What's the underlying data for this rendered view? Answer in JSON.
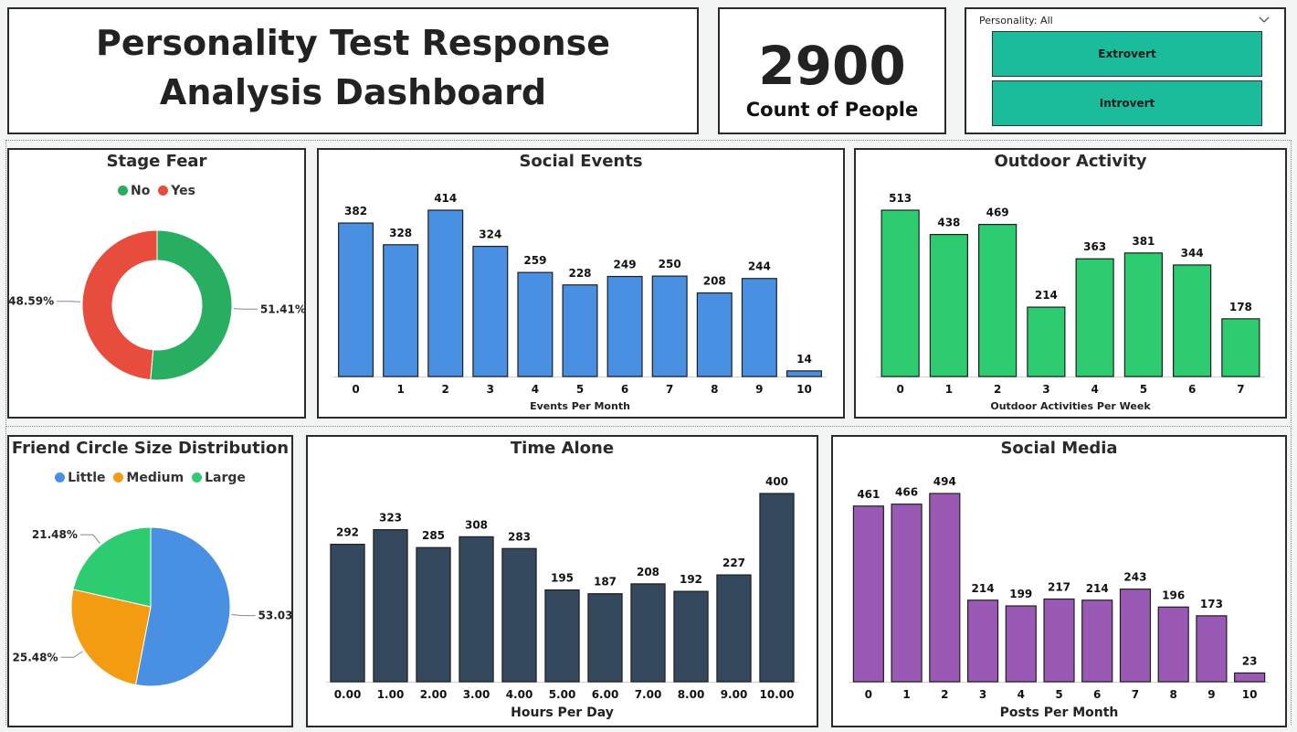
{
  "header": {
    "title": "Personality Test Response Analysis Dashboard"
  },
  "kpi": {
    "value": "2900",
    "label": "Count of People"
  },
  "slicer": {
    "label": "Personality: All",
    "options": [
      "Extrovert",
      "Introvert"
    ],
    "button_color": "#1abc9c"
  },
  "stage_fear": {
    "title": "Stage Fear",
    "legend": [
      {
        "label": "No",
        "color": "#27ae60"
      },
      {
        "label": "Yes",
        "color": "#e74c3c"
      }
    ],
    "chart_data": {
      "type": "pie",
      "donut": true,
      "slices": [
        {
          "label": "No",
          "value": 51.41,
          "value_label": "51.41%",
          "color": "#27ae60"
        },
        {
          "label": "Yes",
          "value": 48.59,
          "value_label": "48.59%",
          "color": "#e74c3c"
        }
      ]
    }
  },
  "social_events": {
    "title": "Social Events",
    "chart_data": {
      "type": "bar",
      "categories": [
        "0",
        "1",
        "2",
        "3",
        "4",
        "5",
        "6",
        "7",
        "8",
        "9",
        "10"
      ],
      "values": [
        382,
        328,
        414,
        324,
        259,
        228,
        249,
        250,
        208,
        244,
        14
      ],
      "xlabel": "Events Per Month",
      "ylim": [
        0,
        414
      ],
      "color": "#4a90e2"
    }
  },
  "outdoor_activity": {
    "title": "Outdoor Activity",
    "chart_data": {
      "type": "bar",
      "categories": [
        "0",
        "1",
        "2",
        "3",
        "4",
        "5",
        "6",
        "7"
      ],
      "values": [
        513,
        438,
        469,
        214,
        363,
        381,
        344,
        178
      ],
      "xlabel": "Outdoor Activities Per Week",
      "ylim": [
        0,
        513
      ],
      "color": "#2ecc71"
    }
  },
  "friend_circle": {
    "title": "Friend Circle Size Distribution",
    "legend": [
      {
        "label": "Little",
        "color": "#4a90e2"
      },
      {
        "label": "Medium",
        "color": "#f39c12"
      },
      {
        "label": "Large",
        "color": "#2ecc71"
      }
    ],
    "chart_data": {
      "type": "pie",
      "donut": false,
      "slices": [
        {
          "label": "Little",
          "value": 53.03,
          "value_label": "53.03%",
          "color": "#4a90e2"
        },
        {
          "label": "Medium",
          "value": 25.48,
          "value_label": "25.48%",
          "color": "#f39c12"
        },
        {
          "label": "Large",
          "value": 21.48,
          "value_label": "21.48%",
          "color": "#2ecc71"
        }
      ]
    }
  },
  "time_alone": {
    "title": "Time Alone",
    "chart_data": {
      "type": "bar",
      "categories": [
        "0.00",
        "1.00",
        "2.00",
        "3.00",
        "4.00",
        "5.00",
        "6.00",
        "7.00",
        "8.00",
        "9.00",
        "10.00"
      ],
      "values": [
        292,
        323,
        285,
        308,
        283,
        195,
        187,
        208,
        192,
        227,
        400
      ],
      "xlabel": "Hours Per Day",
      "ylim": [
        0,
        400
      ],
      "color": "#34495e"
    }
  },
  "social_media": {
    "title": "Social Media",
    "chart_data": {
      "type": "bar",
      "categories": [
        "0",
        "1",
        "2",
        "3",
        "4",
        "5",
        "6",
        "7",
        "8",
        "9",
        "10"
      ],
      "values": [
        461,
        466,
        494,
        214,
        199,
        217,
        214,
        243,
        196,
        173,
        23
      ],
      "xlabel": "Posts Per Month",
      "ylim": [
        0,
        494
      ],
      "color": "#9b59b6"
    }
  }
}
